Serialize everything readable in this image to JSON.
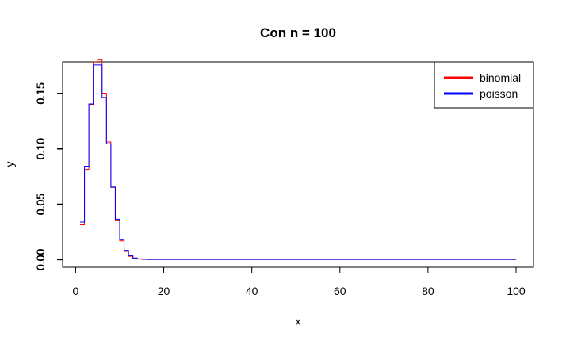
{
  "chart_data": {
    "type": "line",
    "title": "Con n = 100",
    "xlabel": "x",
    "ylabel": "y",
    "xlim": [
      -2.96,
      103.96
    ],
    "ylim": [
      -0.0071,
      0.1783
    ],
    "x_ticks": [
      0,
      20,
      40,
      60,
      80,
      100
    ],
    "y_ticks": [
      0.0,
      0.05,
      0.1,
      0.15
    ],
    "y_tick_labels_binomial": [
      "0.00",
      "0.05",
      "0.10",
      "0.15"
    ],
    "y_tick_labels_poisson": [
      "0.00",
      "0.05",
      "0.10",
      "0.15"
    ],
    "step": true,
    "grid": false,
    "legend_position": "top-right",
    "series": [
      {
        "name": "binomial",
        "color": "#ff0000",
        "x": [
          1,
          2,
          3,
          4,
          5,
          6,
          7,
          8,
          9,
          10,
          11,
          12,
          13,
          14,
          15,
          16,
          17,
          18,
          19,
          20,
          25,
          30,
          40,
          50,
          60,
          70,
          80,
          90,
          100
        ],
        "values": [
          0.0312,
          0.0812,
          0.1396,
          0.1781,
          0.18,
          0.15,
          0.106,
          0.0649,
          0.0349,
          0.0167,
          0.0072,
          0.0028,
          0.001,
          0.0003,
          0.0001,
          0.0,
          0.0,
          0.0,
          0.0,
          0.0,
          0,
          0,
          0,
          0,
          0,
          0,
          0,
          0,
          0
        ]
      },
      {
        "name": "poisson",
        "color": "#0000ff",
        "x": [
          1,
          2,
          3,
          4,
          5,
          6,
          7,
          8,
          9,
          10,
          11,
          12,
          13,
          14,
          15,
          16,
          17,
          18,
          19,
          20,
          25,
          30,
          40,
          50,
          60,
          70,
          80,
          90,
          100
        ],
        "values": [
          0.0337,
          0.0842,
          0.1404,
          0.1755,
          0.1755,
          0.1462,
          0.1044,
          0.0653,
          0.0363,
          0.0181,
          0.0082,
          0.0034,
          0.0013,
          0.0005,
          0.0002,
          0.0,
          0.0,
          0.0,
          0.0,
          0.0,
          0,
          0,
          0,
          0,
          0,
          0,
          0,
          0,
          0
        ]
      }
    ]
  }
}
